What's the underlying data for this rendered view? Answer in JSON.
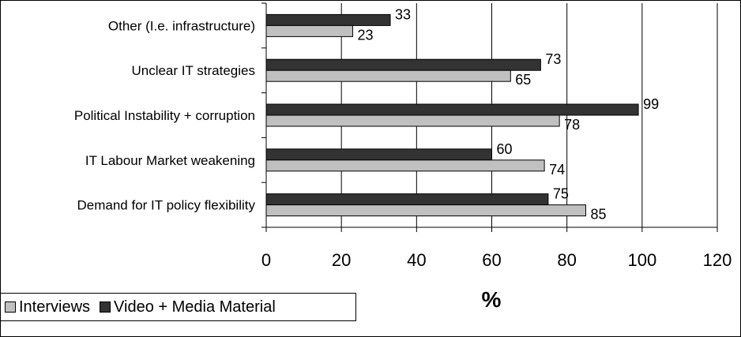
{
  "chart_data": {
    "type": "bar",
    "orientation": "horizontal",
    "categories": [
      "Other (I.e. infrastructure)",
      "Unclear IT strategies",
      "Political Instability + corruption",
      "IT Labour Market weakening",
      "Demand for IT policy flexibility"
    ],
    "series": [
      {
        "name": "Video + Media Material",
        "color": "#333333",
        "values": [
          33,
          73,
          99,
          60,
          75
        ]
      },
      {
        "name": "Interviews",
        "color": "#c0c0c0",
        "values": [
          23,
          65,
          78,
          74,
          85
        ]
      }
    ],
    "xlabel": "%",
    "xlim": [
      0,
      120
    ],
    "xticks": [
      0,
      20,
      40,
      60,
      80,
      100,
      120
    ],
    "grid": "vertical",
    "legend": "bottom-left"
  },
  "legend": {
    "items": [
      {
        "label": "Interviews",
        "color": "#c0c0c0"
      },
      {
        "label": "Video + Media Material",
        "color": "#333333"
      }
    ]
  }
}
